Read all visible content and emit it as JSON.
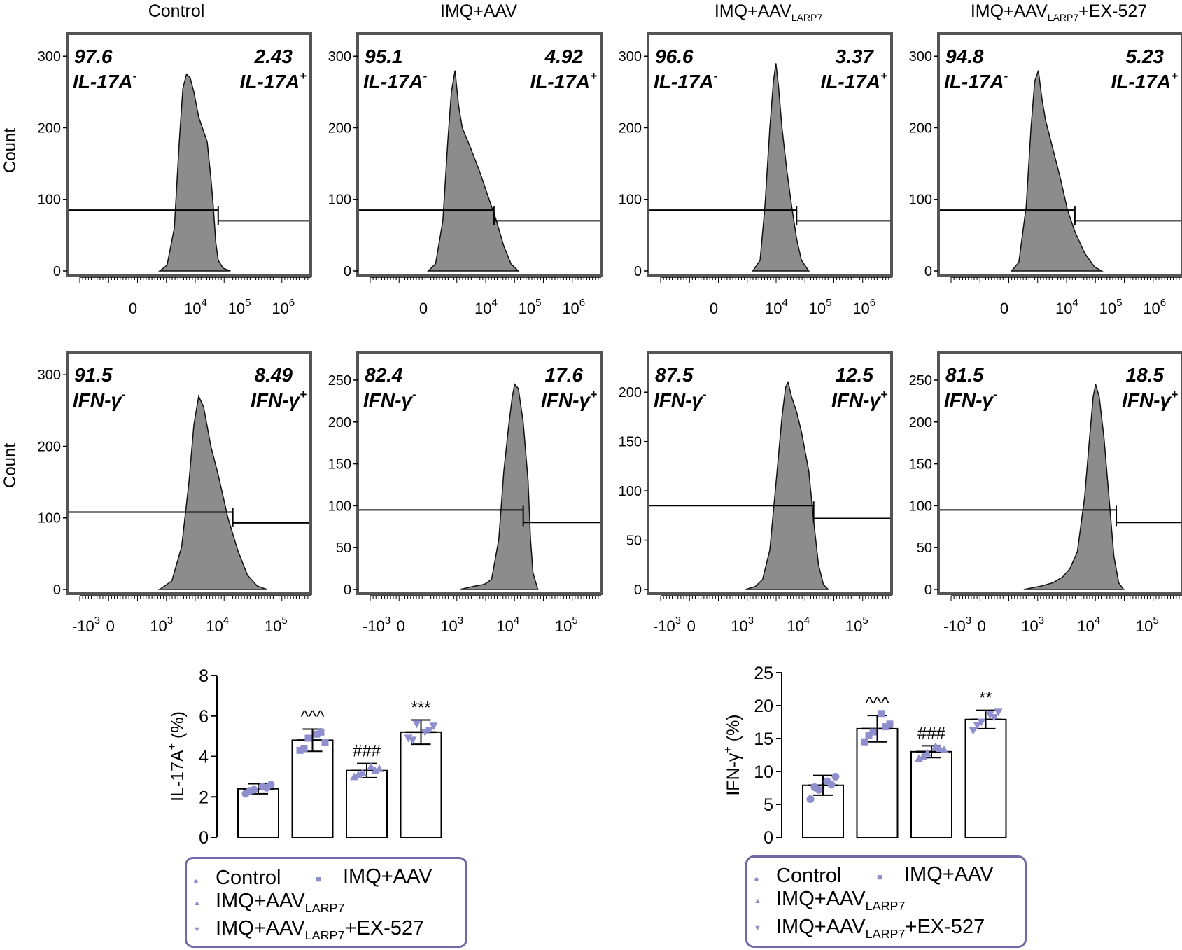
{
  "colors": {
    "hist_fill": "#8c8c8c",
    "frame": "#555555",
    "point": "#8f8fd0",
    "legend_border": "#6f6aa6"
  },
  "column_titles": [
    "Control",
    "IMQ+AAV",
    "IMQ+AAV",
    "IMQ+AAV"
  ],
  "column_title_subs": [
    "",
    "",
    "LARP7",
    "LARP7"
  ],
  "column_title_suffix": [
    "",
    "",
    "",
    "+EX-527"
  ],
  "count_label": "Count",
  "chart_data": [
    {
      "type": "histogram",
      "row": "IL-17A",
      "panels": [
        {
          "group": "Control",
          "y_ticks": [
            "0",
            "100",
            "200",
            "300"
          ],
          "y_max": 310,
          "neg_value": "97.6",
          "pos_value": "2.43",
          "neg_label": "IL-17A",
          "pos_label": "IL-17A",
          "neg_sign": "-",
          "pos_sign": "+",
          "x_ticks": [
            {
              "base": "0",
              "exp": ""
            },
            {
              "base": "10",
              "exp": "4"
            },
            {
              "base": "10",
              "exp": "5"
            },
            {
              "base": "10",
              "exp": "6"
            }
          ],
          "gate_split": 0.62,
          "gate_neg_y": 85,
          "gate_pos_y": 70,
          "profile": [
            [
              0.38,
              0
            ],
            [
              0.41,
              8
            ],
            [
              0.44,
              60
            ],
            [
              0.46,
              180
            ],
            [
              0.475,
              255
            ],
            [
              0.49,
              275
            ],
            [
              0.505,
              270
            ],
            [
              0.52,
              250
            ],
            [
              0.54,
              215
            ],
            [
              0.56,
              195
            ],
            [
              0.575,
              180
            ],
            [
              0.59,
              130
            ],
            [
              0.6,
              90
            ],
            [
              0.61,
              40
            ],
            [
              0.62,
              15
            ],
            [
              0.64,
              4
            ],
            [
              0.67,
              0
            ]
          ]
        },
        {
          "group": "IMQ+AAV",
          "y_ticks": [
            "0",
            "100",
            "200",
            "300"
          ],
          "y_max": 310,
          "neg_value": "95.1",
          "pos_value": "4.92",
          "neg_label": "IL-17A",
          "pos_label": "IL-17A",
          "neg_sign": "-",
          "pos_sign": "+",
          "x_ticks": [
            {
              "base": "0",
              "exp": ""
            },
            {
              "base": "10",
              "exp": "4"
            },
            {
              "base": "10",
              "exp": "5"
            },
            {
              "base": "10",
              "exp": "6"
            }
          ],
          "gate_split": 0.56,
          "gate_neg_y": 85,
          "gate_pos_y": 70,
          "profile": [
            [
              0.29,
              0
            ],
            [
              0.32,
              10
            ],
            [
              0.35,
              70
            ],
            [
              0.37,
              180
            ],
            [
              0.385,
              250
            ],
            [
              0.4,
              280
            ],
            [
              0.415,
              230
            ],
            [
              0.43,
              200
            ],
            [
              0.46,
              175
            ],
            [
              0.5,
              140
            ],
            [
              0.54,
              100
            ],
            [
              0.57,
              70
            ],
            [
              0.6,
              35
            ],
            [
              0.63,
              10
            ],
            [
              0.66,
              0
            ]
          ]
        },
        {
          "group": "IMQ+AAV LARP7",
          "y_ticks": [
            "0",
            "100",
            "200",
            "300"
          ],
          "y_max": 310,
          "neg_value": "96.6",
          "pos_value": "3.37",
          "neg_label": "IL-17A",
          "pos_label": "IL-17A",
          "neg_sign": "-",
          "pos_sign": "+",
          "x_ticks": [
            {
              "base": "0",
              "exp": ""
            },
            {
              "base": "10",
              "exp": "4"
            },
            {
              "base": "10",
              "exp": "5"
            },
            {
              "base": "10",
              "exp": "6"
            }
          ],
          "gate_split": 0.61,
          "gate_neg_y": 85,
          "gate_pos_y": 70,
          "profile": [
            [
              0.43,
              0
            ],
            [
              0.46,
              15
            ],
            [
              0.48,
              90
            ],
            [
              0.5,
              200
            ],
            [
              0.515,
              265
            ],
            [
              0.525,
              290
            ],
            [
              0.535,
              260
            ],
            [
              0.55,
              200
            ],
            [
              0.57,
              140
            ],
            [
              0.59,
              90
            ],
            [
              0.61,
              45
            ],
            [
              0.63,
              15
            ],
            [
              0.66,
              0
            ]
          ]
        },
        {
          "group": "IMQ+AAV LARP7 +EX-527",
          "y_ticks": [
            "0",
            "100",
            "200",
            "300"
          ],
          "y_max": 310,
          "neg_value": "94.8",
          "pos_value": "5.23",
          "neg_label": "IL-17A",
          "pos_label": "IL-17A",
          "neg_sign": "-",
          "pos_sign": "+",
          "x_ticks": [
            {
              "base": "0",
              "exp": ""
            },
            {
              "base": "10",
              "exp": "4"
            },
            {
              "base": "10",
              "exp": "5"
            },
            {
              "base": "10",
              "exp": "6"
            }
          ],
          "gate_split": 0.56,
          "gate_neg_y": 85,
          "gate_pos_y": 70,
          "profile": [
            [
              0.3,
              0
            ],
            [
              0.33,
              12
            ],
            [
              0.36,
              90
            ],
            [
              0.38,
              200
            ],
            [
              0.395,
              265
            ],
            [
              0.41,
              280
            ],
            [
              0.425,
              240
            ],
            [
              0.44,
              210
            ],
            [
              0.47,
              170
            ],
            [
              0.5,
              130
            ],
            [
              0.53,
              85
            ],
            [
              0.56,
              55
            ],
            [
              0.6,
              25
            ],
            [
              0.64,
              6
            ],
            [
              0.67,
              0
            ]
          ]
        }
      ]
    },
    {
      "type": "histogram",
      "row": "IFN-γ",
      "panels": [
        {
          "group": "Control",
          "y_ticks": [
            "0",
            "100",
            "200",
            "300"
          ],
          "y_max": 310,
          "neg_value": "91.5",
          "pos_value": "8.49",
          "neg_label": "IFN-γ",
          "pos_label": "IFN-γ",
          "neg_sign": "-",
          "pos_sign": "+",
          "x_ticks": [
            {
              "base": "-10",
              "exp": "3"
            },
            {
              "base": "0",
              "exp": ""
            },
            {
              "base": "10",
              "exp": "3"
            },
            {
              "base": "10",
              "exp": "4"
            },
            {
              "base": "10",
              "exp": "5"
            }
          ],
          "gate_split": 0.68,
          "gate_neg_y": 108,
          "gate_pos_y": 93,
          "profile": [
            [
              0.38,
              0
            ],
            [
              0.43,
              12
            ],
            [
              0.47,
              60
            ],
            [
              0.5,
              150
            ],
            [
              0.52,
              230
            ],
            [
              0.54,
              270
            ],
            [
              0.56,
              255
            ],
            [
              0.59,
              200
            ],
            [
              0.62,
              160
            ],
            [
              0.66,
              100
            ],
            [
              0.7,
              55
            ],
            [
              0.74,
              20
            ],
            [
              0.78,
              5
            ],
            [
              0.82,
              0
            ]
          ]
        },
        {
          "group": "IMQ+AAV",
          "y_ticks": [
            "0",
            "50",
            "100",
            "150",
            "200",
            "250"
          ],
          "y_max": 265,
          "neg_value": "82.4",
          "pos_value": "17.6",
          "neg_label": "IFN-γ",
          "pos_label": "IFN-γ",
          "neg_sign": "-",
          "pos_sign": "+",
          "x_ticks": [
            {
              "base": "-10",
              "exp": "3"
            },
            {
              "base": "0",
              "exp": ""
            },
            {
              "base": "10",
              "exp": "3"
            },
            {
              "base": "10",
              "exp": "4"
            },
            {
              "base": "10",
              "exp": "5"
            }
          ],
          "gate_split": 0.68,
          "gate_neg_y": 95,
          "gate_pos_y": 80,
          "profile": [
            [
              0.42,
              0
            ],
            [
              0.48,
              4
            ],
            [
              0.52,
              6
            ],
            [
              0.55,
              12
            ],
            [
              0.58,
              60
            ],
            [
              0.6,
              140
            ],
            [
              0.62,
              195
            ],
            [
              0.635,
              230
            ],
            [
              0.645,
              245
            ],
            [
              0.66,
              240
            ],
            [
              0.68,
              200
            ],
            [
              0.7,
              130
            ],
            [
              0.71,
              60
            ],
            [
              0.72,
              20
            ],
            [
              0.74,
              0
            ]
          ]
        },
        {
          "group": "IMQ+AAV LARP7",
          "y_ticks": [
            "0",
            "50",
            "100",
            "150",
            "200"
          ],
          "y_max": 225,
          "neg_value": "87.5",
          "pos_value": "12.5",
          "neg_label": "IFN-γ",
          "pos_label": "IFN-γ",
          "neg_sign": "-",
          "pos_sign": "+",
          "x_ticks": [
            {
              "base": "-10",
              "exp": "3"
            },
            {
              "base": "0",
              "exp": ""
            },
            {
              "base": "10",
              "exp": "3"
            },
            {
              "base": "10",
              "exp": "4"
            },
            {
              "base": "10",
              "exp": "5"
            }
          ],
          "gate_split": 0.68,
          "gate_neg_y": 85,
          "gate_pos_y": 72,
          "profile": [
            [
              0.4,
              0
            ],
            [
              0.44,
              3
            ],
            [
              0.47,
              10
            ],
            [
              0.5,
              40
            ],
            [
              0.53,
              120
            ],
            [
              0.55,
              175
            ],
            [
              0.565,
              205
            ],
            [
              0.575,
              210
            ],
            [
              0.59,
              195
            ],
            [
              0.61,
              180
            ],
            [
              0.63,
              160
            ],
            [
              0.66,
              120
            ],
            [
              0.68,
              70
            ],
            [
              0.7,
              25
            ],
            [
              0.72,
              5
            ],
            [
              0.74,
              0
            ]
          ]
        },
        {
          "group": "IMQ+AAV LARP7 +EX-527",
          "y_ticks": [
            "0",
            "50",
            "100",
            "150",
            "200",
            "250"
          ],
          "y_max": 265,
          "neg_value": "81.5",
          "pos_value": "18.5",
          "neg_label": "IFN-γ",
          "pos_label": "IFN-γ",
          "neg_sign": "-",
          "pos_sign": "+",
          "x_ticks": [
            {
              "base": "-10",
              "exp": "3"
            },
            {
              "base": "0",
              "exp": ""
            },
            {
              "base": "10",
              "exp": "3"
            },
            {
              "base": "10",
              "exp": "4"
            },
            {
              "base": "10",
              "exp": "5"
            }
          ],
          "gate_split": 0.73,
          "gate_neg_y": 95,
          "gate_pos_y": 80,
          "profile": [
            [
              0.35,
              0
            ],
            [
              0.42,
              4
            ],
            [
              0.47,
              8
            ],
            [
              0.51,
              15
            ],
            [
              0.54,
              25
            ],
            [
              0.57,
              45
            ],
            [
              0.6,
              110
            ],
            [
              0.62,
              180
            ],
            [
              0.635,
              230
            ],
            [
              0.645,
              245
            ],
            [
              0.66,
              230
            ],
            [
              0.68,
              180
            ],
            [
              0.7,
              110
            ],
            [
              0.72,
              40
            ],
            [
              0.74,
              8
            ],
            [
              0.76,
              0
            ]
          ]
        }
      ]
    },
    {
      "type": "bar",
      "title": "",
      "ylabel": "IL-17A",
      "ylabel_sup": "+",
      "ylabel_suffix": " (%)",
      "ylim": [
        0,
        8
      ],
      "y_ticks": [
        "0",
        "2",
        "4",
        "6",
        "8"
      ],
      "categories": [
        "Control",
        "IMQ+AAV",
        "IMQ+AAV LARP7",
        "IMQ+AAV LARP7 +EX-527"
      ],
      "values": [
        2.4,
        4.8,
        3.3,
        5.2
      ],
      "errors": [
        0.25,
        0.55,
        0.35,
        0.6
      ],
      "annotations": [
        "",
        "^^^",
        "###",
        "***"
      ],
      "points": [
        [
          2.15,
          2.35,
          2.5,
          2.6,
          2.3,
          2.45
        ],
        [
          4.3,
          4.9,
          5.1,
          4.7,
          4.4,
          5.2
        ],
        [
          3.0,
          3.2,
          3.5,
          3.4,
          3.1,
          3.3
        ],
        [
          4.9,
          5.6,
          5.2,
          5.5,
          4.8,
          5.3
        ]
      ],
      "markers": [
        "circle",
        "square",
        "triangle-up",
        "triangle-down"
      ]
    },
    {
      "type": "bar",
      "title": "",
      "ylabel": "IFN-γ",
      "ylabel_sup": "+",
      "ylabel_suffix": " (%)",
      "ylim": [
        0,
        25
      ],
      "y_ticks": [
        "0",
        "5",
        "10",
        "15",
        "20",
        "25"
      ],
      "categories": [
        "Control",
        "IMQ+AAV",
        "IMQ+AAV LARP7",
        "IMQ+AAV LARP7 +EX-527"
      ],
      "values": [
        7.9,
        16.5,
        13.0,
        17.9
      ],
      "errors": [
        1.5,
        2.0,
        0.9,
        1.4
      ],
      "annotations": [
        "",
        "^^^",
        "###",
        "**"
      ],
      "points": [
        [
          5.8,
          7.2,
          8.5,
          9.2,
          7.6,
          8.0
        ],
        [
          14.5,
          16.0,
          18.8,
          17.2,
          15.5,
          16.8
        ],
        [
          12.0,
          12.8,
          13.8,
          13.3,
          12.3,
          13.5
        ],
        [
          16.2,
          17.5,
          18.6,
          19.0,
          17.0,
          18.2
        ]
      ],
      "markers": [
        "circle",
        "square",
        "triangle-up",
        "triangle-down"
      ]
    }
  ],
  "legend": {
    "items": [
      {
        "marker": "circle",
        "label": "Control",
        "sub": "",
        "suffix": ""
      },
      {
        "marker": "square",
        "label": "IMQ+AAV",
        "sub": "",
        "suffix": ""
      },
      {
        "marker": "triangle-up",
        "label": "IMQ+AAV",
        "sub": "LARP7",
        "suffix": ""
      },
      {
        "marker": "triangle-down",
        "label": "IMQ+AAV",
        "sub": "LARP7",
        "suffix": "+EX-527"
      }
    ],
    "marker_glyphs": {
      "circle": "●",
      "square": "■",
      "triangle-up": "▲",
      "triangle-down": "▼"
    }
  }
}
